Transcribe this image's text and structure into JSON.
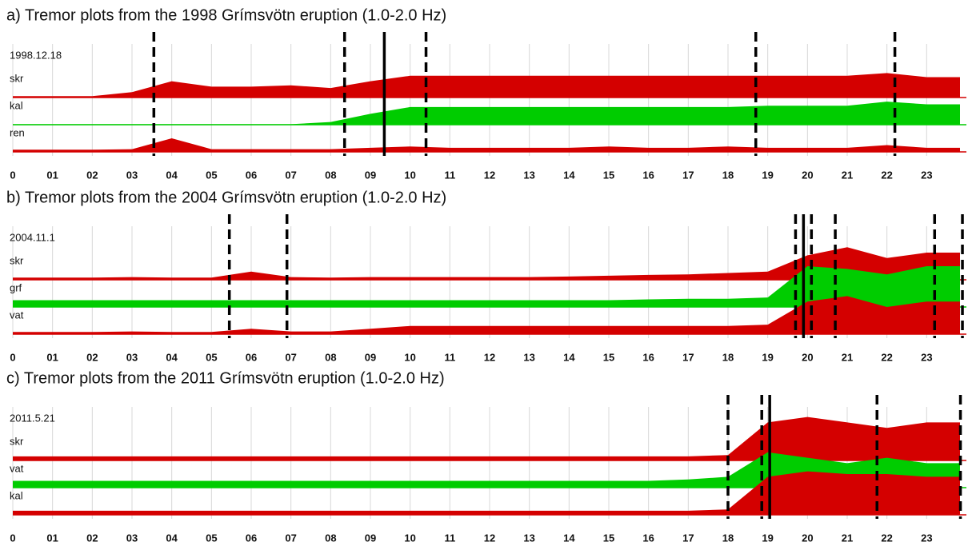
{
  "chart_data": [
    {
      "type": "area",
      "title": "a) Tremor plots from the 1998 Grímsvötn eruption (1.0-2.0 Hz)",
      "date_label": "1998.12.18",
      "x": [
        0,
        1,
        2,
        3,
        4,
        5,
        6,
        7,
        8,
        9,
        10,
        11,
        12,
        13,
        14,
        15,
        16,
        17,
        18,
        19,
        20,
        21,
        22,
        23
      ],
      "xlim": [
        0,
        24
      ],
      "xticks": [
        0,
        {
          "value": 1,
          "label": "01"
        },
        {
          "value": 2,
          "label": "02"
        },
        {
          "value": 3,
          "label": "03"
        },
        {
          "value": 4,
          "label": "04"
        },
        {
          "value": 5,
          "label": "05"
        },
        {
          "value": 6,
          "label": "06"
        },
        {
          "value": 7,
          "label": "07"
        },
        {
          "value": 8,
          "label": "08"
        },
        {
          "value": 9,
          "label": "09"
        },
        10,
        11,
        12,
        13,
        14,
        15,
        16,
        17,
        18,
        19,
        20,
        21,
        22,
        23
      ],
      "grid": true,
      "series": [
        {
          "name": "skr",
          "color": "#d40000",
          "values": [
            0.05,
            0.05,
            0.05,
            0.2,
            0.6,
            0.4,
            0.4,
            0.45,
            0.35,
            0.6,
            0.8,
            0.8,
            0.8,
            0.8,
            0.8,
            0.8,
            0.8,
            0.8,
            0.8,
            0.8,
            0.8,
            0.8,
            0.9,
            0.75
          ]
        },
        {
          "name": "kal",
          "color": "#00cc00",
          "values": [
            0.02,
            0.02,
            0.02,
            0.02,
            0.02,
            0.02,
            0.02,
            0.02,
            0.1,
            0.4,
            0.65,
            0.65,
            0.65,
            0.65,
            0.65,
            0.65,
            0.65,
            0.65,
            0.65,
            0.7,
            0.7,
            0.7,
            0.85,
            0.75
          ]
        },
        {
          "name": "ren",
          "color": "#d40000",
          "values": [
            0.08,
            0.08,
            0.08,
            0.1,
            0.5,
            0.1,
            0.1,
            0.1,
            0.1,
            0.15,
            0.2,
            0.15,
            0.15,
            0.15,
            0.15,
            0.2,
            0.15,
            0.15,
            0.2,
            0.15,
            0.15,
            0.15,
            0.25,
            0.15
          ]
        }
      ],
      "events": [
        {
          "x": 3.55,
          "style": "dashed"
        },
        {
          "x": 8.35,
          "style": "dashed"
        },
        {
          "x": 9.35,
          "style": "solid"
        },
        {
          "x": 10.4,
          "style": "dashed"
        },
        {
          "x": 18.7,
          "style": "dashed"
        },
        {
          "x": 22.2,
          "style": "dashed"
        }
      ]
    },
    {
      "type": "area",
      "title": "b) Tremor plots from the 2004 Grímsvötn eruption (1.0-2.0 Hz)",
      "date_label": "2004.11.1",
      "x": [
        0,
        1,
        2,
        3,
        4,
        5,
        6,
        7,
        8,
        9,
        10,
        11,
        12,
        13,
        14,
        15,
        16,
        17,
        18,
        19,
        20,
        21,
        22,
        23
      ],
      "xlim": [
        0,
        24
      ],
      "xticks": [
        0,
        {
          "value": 1,
          "label": "01"
        },
        {
          "value": 2,
          "label": "02"
        },
        {
          "value": 3,
          "label": "03"
        },
        {
          "value": 4,
          "label": "04"
        },
        {
          "value": 5,
          "label": "05"
        },
        {
          "value": 6,
          "label": "06"
        },
        {
          "value": 7,
          "label": "07"
        },
        {
          "value": 8,
          "label": "08"
        },
        {
          "value": 9,
          "label": "09"
        },
        10,
        11,
        12,
        13,
        14,
        15,
        16,
        17,
        18,
        19,
        20,
        21,
        22,
        23
      ],
      "grid": true,
      "series": [
        {
          "name": "skr",
          "color": "#d40000",
          "values": [
            0.08,
            0.08,
            0.08,
            0.1,
            0.08,
            0.08,
            0.3,
            0.1,
            0.08,
            0.1,
            0.1,
            0.1,
            0.1,
            0.1,
            0.12,
            0.15,
            0.18,
            0.2,
            0.25,
            0.3,
            0.9,
            1.2,
            0.8,
            1.0
          ]
        },
        {
          "name": "grf",
          "color": "#00cc00",
          "values": [
            0.25,
            0.25,
            0.25,
            0.25,
            0.25,
            0.25,
            0.25,
            0.25,
            0.25,
            0.25,
            0.25,
            0.25,
            0.25,
            0.25,
            0.25,
            0.25,
            0.28,
            0.3,
            0.3,
            0.35,
            1.5,
            1.4,
            1.2,
            1.5
          ]
        },
        {
          "name": "vat",
          "color": "#d40000",
          "values": [
            0.08,
            0.08,
            0.08,
            0.1,
            0.08,
            0.08,
            0.2,
            0.1,
            0.1,
            0.2,
            0.3,
            0.3,
            0.3,
            0.3,
            0.3,
            0.3,
            0.3,
            0.3,
            0.3,
            0.35,
            1.2,
            1.4,
            1.0,
            1.2
          ]
        }
      ],
      "events": [
        {
          "x": 5.45,
          "style": "dashed"
        },
        {
          "x": 6.9,
          "style": "dashed"
        },
        {
          "x": 19.7,
          "style": "dashed"
        },
        {
          "x": 19.9,
          "style": "solid"
        },
        {
          "x": 20.1,
          "style": "dashed"
        },
        {
          "x": 20.7,
          "style": "dashed"
        },
        {
          "x": 23.2,
          "style": "dashed"
        },
        {
          "x": 23.9,
          "style": "dashed"
        }
      ]
    },
    {
      "type": "area",
      "title": "c) Tremor plots from the 2011 Grímsvötn eruption (1.0-2.0 Hz)",
      "date_label": "2011.5.21",
      "x": [
        0,
        1,
        2,
        3,
        4,
        5,
        6,
        7,
        8,
        9,
        10,
        11,
        12,
        13,
        14,
        15,
        16,
        17,
        18,
        19,
        20,
        21,
        22,
        23
      ],
      "xlim": [
        0,
        24
      ],
      "xticks": [
        0,
        {
          "value": 1,
          "label": "01"
        },
        {
          "value": 2,
          "label": "02"
        },
        {
          "value": 3,
          "label": "03"
        },
        {
          "value": 4,
          "label": "04"
        },
        {
          "value": 5,
          "label": "05"
        },
        {
          "value": 6,
          "label": "06"
        },
        {
          "value": 7,
          "label": "07"
        },
        {
          "value": 8,
          "label": "08"
        },
        {
          "value": 9,
          "label": "09"
        },
        10,
        11,
        12,
        13,
        14,
        15,
        16,
        17,
        18,
        19,
        20,
        21,
        22,
        23
      ],
      "grid": true,
      "series": [
        {
          "name": "skr",
          "color": "#d40000",
          "values": [
            0.15,
            0.15,
            0.15,
            0.15,
            0.15,
            0.15,
            0.15,
            0.15,
            0.15,
            0.15,
            0.15,
            0.15,
            0.15,
            0.15,
            0.15,
            0.15,
            0.15,
            0.15,
            0.2,
            1.4,
            1.6,
            1.4,
            1.2,
            1.4
          ]
        },
        {
          "name": "vat",
          "color": "#00cc00",
          "values": [
            0.25,
            0.25,
            0.25,
            0.25,
            0.25,
            0.25,
            0.25,
            0.25,
            0.25,
            0.25,
            0.25,
            0.25,
            0.25,
            0.25,
            0.25,
            0.25,
            0.25,
            0.3,
            0.4,
            1.3,
            1.1,
            0.9,
            1.1,
            0.9
          ]
        },
        {
          "name": "kal",
          "color": "#d40000",
          "values": [
            0.15,
            0.15,
            0.15,
            0.15,
            0.15,
            0.15,
            0.15,
            0.15,
            0.15,
            0.15,
            0.15,
            0.15,
            0.15,
            0.15,
            0.15,
            0.15,
            0.15,
            0.15,
            0.2,
            1.4,
            1.6,
            1.5,
            1.5,
            1.4
          ]
        }
      ],
      "events": [
        {
          "x": 18.0,
          "style": "dashed"
        },
        {
          "x": 18.85,
          "style": "dashed"
        },
        {
          "x": 19.05,
          "style": "solid"
        },
        {
          "x": 21.75,
          "style": "dashed"
        },
        {
          "x": 23.85,
          "style": "dashed"
        }
      ]
    }
  ]
}
